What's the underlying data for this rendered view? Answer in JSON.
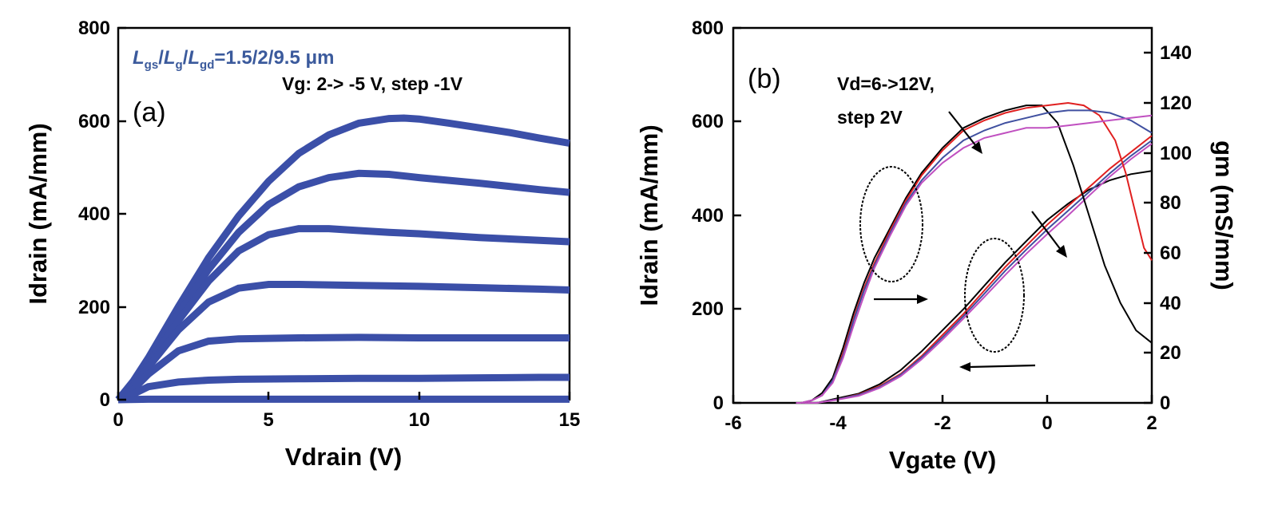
{
  "chart_data": [
    {
      "type": "line",
      "panel_label": "(a)",
      "xlabel": "Vdrain (V)",
      "ylabel": "Idrain (mA/mm)",
      "xlim": [
        0,
        15
      ],
      "ylim": [
        0,
        800
      ],
      "xticks": [
        "0",
        "5",
        "10",
        "15"
      ],
      "yticks": [
        "0",
        "200",
        "400",
        "600",
        "800"
      ],
      "annotation_geometry": {
        "prefix_L": "L",
        "sub_gs": "gs",
        "sep": "/",
        "sub_g": "g",
        "sub_gd": "gd",
        "suffix": "=1.5/2/9.5 μm"
      },
      "annotation_bias": "Vg: 2-> -5 V, step -1V",
      "color": "#3b4fa8",
      "series": [
        {
          "x": [
            0,
            0.5,
            1,
            2,
            3,
            4,
            5,
            6,
            7,
            8,
            9,
            9.5,
            10,
            11,
            12,
            13,
            14,
            15
          ],
          "y": [
            0,
            40,
            90,
            200,
            305,
            395,
            470,
            530,
            570,
            595,
            605,
            606,
            604,
            595,
            585,
            575,
            563,
            552
          ]
        },
        {
          "x": [
            0,
            0.5,
            1,
            2,
            3,
            4,
            5,
            6,
            7,
            8,
            9,
            10,
            11,
            12,
            13,
            14,
            15
          ],
          "y": [
            0,
            38,
            85,
            185,
            280,
            360,
            420,
            458,
            478,
            487,
            485,
            478,
            472,
            466,
            459,
            452,
            446
          ]
        },
        {
          "x": [
            0,
            0.5,
            1,
            2,
            3,
            4,
            5,
            6,
            7,
            8,
            9,
            10,
            11,
            12,
            13,
            14,
            15
          ],
          "y": [
            0,
            35,
            78,
            170,
            255,
            320,
            355,
            368,
            368,
            364,
            360,
            357,
            353,
            349,
            346,
            343,
            340
          ]
        },
        {
          "x": [
            0,
            0.5,
            1,
            2,
            3,
            4,
            5,
            6,
            7,
            8,
            10,
            12,
            14,
            15
          ],
          "y": [
            0,
            30,
            70,
            150,
            210,
            240,
            248,
            248,
            247,
            246,
            244,
            241,
            238,
            236
          ]
        },
        {
          "x": [
            0,
            0.5,
            1,
            2,
            3,
            4,
            5,
            6,
            8,
            10,
            12,
            14,
            15
          ],
          "y": [
            0,
            22,
            55,
            105,
            126,
            131,
            132,
            133,
            134,
            133,
            133,
            133,
            133
          ]
        },
        {
          "x": [
            0,
            0.5,
            1,
            2,
            3,
            4,
            6,
            8,
            10,
            12,
            14,
            15
          ],
          "y": [
            0,
            12,
            28,
            38,
            42,
            44,
            45,
            46,
            46,
            47,
            48,
            48
          ]
        },
        {
          "x": [
            0,
            1,
            2,
            4,
            6,
            8,
            10,
            12,
            14,
            15
          ],
          "y": [
            0,
            1,
            1,
            1,
            1,
            1,
            1,
            1,
            1,
            1
          ]
        }
      ]
    },
    {
      "type": "line",
      "panel_label": "(b)",
      "xlabel": "Vgate (V)",
      "ylabel": "Idrain (mA/mm)",
      "y2label": "gm (mS/mm)",
      "xlim": [
        -6,
        2
      ],
      "ylim": [
        0,
        800
      ],
      "y2lim": [
        0,
        150
      ],
      "xticks": [
        "-6",
        "-4",
        "-2",
        "0",
        "2"
      ],
      "yticks": [
        "0",
        "200",
        "400",
        "600",
        "800"
      ],
      "y2ticks": [
        "0",
        "20",
        "40",
        "60",
        "80",
        "100",
        "120",
        "140"
      ],
      "annotation_lines": [
        "Vd=6->12V,",
        "step 2V"
      ],
      "idrain_series": [
        {
          "color": "#000000",
          "x": [
            -4.8,
            -4.4,
            -4.0,
            -3.6,
            -3.2,
            -2.8,
            -2.4,
            -2.0,
            -1.6,
            -1.2,
            -0.8,
            -0.4,
            0.0,
            0.4,
            0.8,
            1.2,
            1.6,
            2.0
          ],
          "y": [
            0,
            0,
            10,
            20,
            40,
            70,
            110,
            155,
            200,
            250,
            300,
            345,
            390,
            425,
            455,
            475,
            488,
            495
          ]
        },
        {
          "color": "#e02020",
          "x": [
            -4.8,
            -4.4,
            -4.0,
            -3.6,
            -3.2,
            -2.8,
            -2.4,
            -2.0,
            -1.6,
            -1.2,
            -0.8,
            -0.4,
            0.0,
            0.4,
            0.8,
            1.2,
            1.6,
            2.0
          ],
          "y": [
            0,
            0,
            8,
            18,
            36,
            62,
            100,
            145,
            190,
            240,
            290,
            335,
            380,
            420,
            460,
            500,
            535,
            570
          ]
        },
        {
          "color": "#4050a0",
          "x": [
            -4.8,
            -4.4,
            -4.0,
            -3.6,
            -3.2,
            -2.8,
            -2.4,
            -2.0,
            -1.6,
            -1.2,
            -0.8,
            -0.4,
            0.0,
            0.4,
            0.8,
            1.2,
            1.6,
            2.0
          ],
          "y": [
            0,
            0,
            8,
            17,
            34,
            60,
            97,
            140,
            185,
            233,
            282,
            327,
            370,
            410,
            450,
            490,
            527,
            560
          ]
        },
        {
          "color": "#c050c0",
          "x": [
            -4.8,
            -4.4,
            -4.0,
            -3.6,
            -3.2,
            -2.8,
            -2.4,
            -2.0,
            -1.6,
            -1.2,
            -0.8,
            -0.4,
            0.0,
            0.4,
            0.8,
            1.2,
            1.6,
            2.0
          ],
          "y": [
            0,
            0,
            7,
            15,
            32,
            57,
            93,
            135,
            180,
            226,
            273,
            318,
            360,
            400,
            442,
            483,
            520,
            553
          ]
        }
      ],
      "gm_series": [
        {
          "color": "#000000",
          "x": [
            -4.7,
            -4.5,
            -4.3,
            -4.1,
            -3.9,
            -3.7,
            -3.5,
            -3.3,
            -3.0,
            -2.7,
            -2.4,
            -2.0,
            -1.6,
            -1.2,
            -0.8,
            -0.4,
            -0.1,
            0.2,
            0.5,
            0.8,
            1.1,
            1.4,
            1.7,
            2.0
          ],
          "y": [
            0,
            1,
            4,
            10,
            22,
            36,
            48,
            58,
            70,
            82,
            92,
            102,
            110,
            114,
            117,
            119,
            119,
            112,
            95,
            75,
            55,
            40,
            29,
            24
          ]
        },
        {
          "color": "#e02020",
          "x": [
            -4.7,
            -4.5,
            -4.3,
            -4.1,
            -3.9,
            -3.7,
            -3.5,
            -3.3,
            -3.0,
            -2.7,
            -2.4,
            -2.0,
            -1.6,
            -1.2,
            -0.8,
            -0.4,
            0.0,
            0.4,
            0.7,
            1.0,
            1.3,
            1.5,
            1.7,
            1.85,
            2.0
          ],
          "y": [
            0,
            1,
            3,
            9,
            20,
            34,
            46,
            56,
            69,
            81,
            91,
            101,
            109,
            113,
            116,
            118,
            119,
            120,
            119,
            115,
            105,
            92,
            75,
            62,
            57
          ]
        },
        {
          "color": "#4050a0",
          "x": [
            -4.7,
            -4.5,
            -4.3,
            -4.1,
            -3.9,
            -3.7,
            -3.5,
            -3.3,
            -3.0,
            -2.7,
            -2.4,
            -2.0,
            -1.6,
            -1.2,
            -0.8,
            -0.4,
            0.0,
            0.4,
            0.8,
            1.2,
            1.6,
            2.0
          ],
          "y": [
            0,
            1,
            3,
            9,
            19,
            33,
            45,
            55,
            68,
            80,
            89,
            98,
            105,
            109,
            112,
            114,
            116,
            117,
            117,
            116,
            113,
            108
          ]
        },
        {
          "color": "#c050c0",
          "x": [
            -4.7,
            -4.5,
            -4.3,
            -4.1,
            -3.9,
            -3.7,
            -3.5,
            -3.3,
            -3.0,
            -2.7,
            -2.4,
            -2.0,
            -1.6,
            -1.2,
            -0.8,
            -0.4,
            0.0,
            0.4,
            0.8,
            1.2,
            1.6,
            2.0
          ],
          "y": [
            0,
            1,
            3,
            8,
            18,
            31,
            43,
            54,
            67,
            79,
            88,
            96,
            102,
            106,
            108,
            110,
            110,
            111,
            112,
            113,
            114,
            115
          ]
        }
      ],
      "grid": false
    }
  ]
}
